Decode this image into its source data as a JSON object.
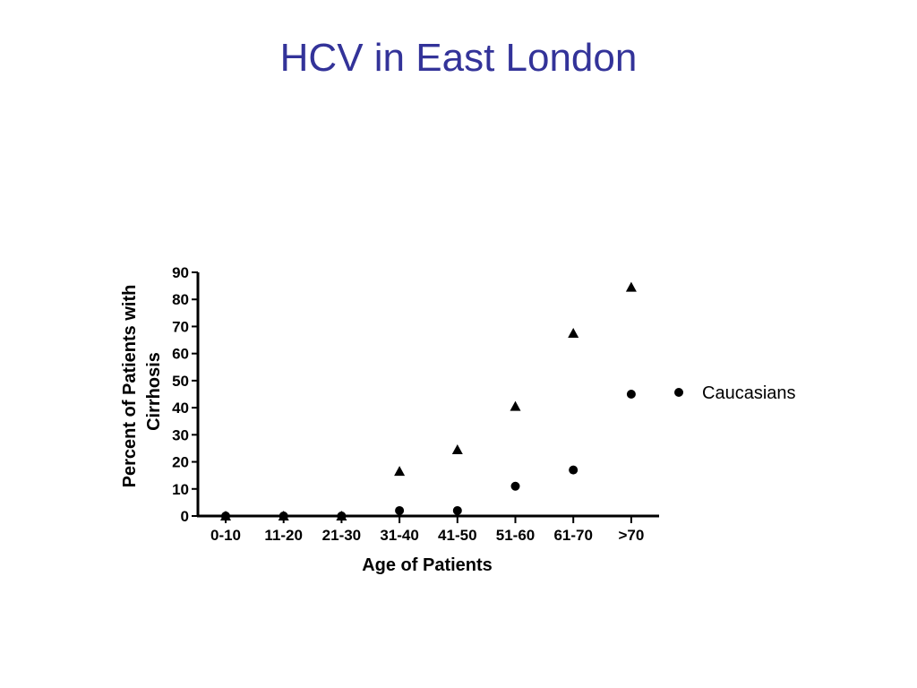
{
  "slide": {
    "title": "HCV in East London"
  },
  "chart_data": {
    "type": "scatter",
    "title": "",
    "categories": [
      "0-10",
      "11-20",
      "21-30",
      "31-40",
      "41-50",
      "51-60",
      "61-70",
      ">70"
    ],
    "xlabel": "Age of Patients",
    "ylabel_lines": [
      "Percent of Patients with",
      "Cirrhosis"
    ],
    "ylim": [
      0,
      90
    ],
    "yticks": [
      0,
      10,
      20,
      30,
      40,
      50,
      60,
      70,
      80,
      90
    ],
    "grid": false,
    "legend_position": "right",
    "series": [
      {
        "name": "Caucasians",
        "marker": "circle",
        "values": [
          0,
          0,
          0,
          2,
          2,
          11,
          17,
          45
        ]
      },
      {
        "marker": "triangle",
        "values": [
          0,
          0,
          0,
          16.5,
          24.5,
          40.5,
          67.5,
          84.5
        ]
      }
    ]
  }
}
